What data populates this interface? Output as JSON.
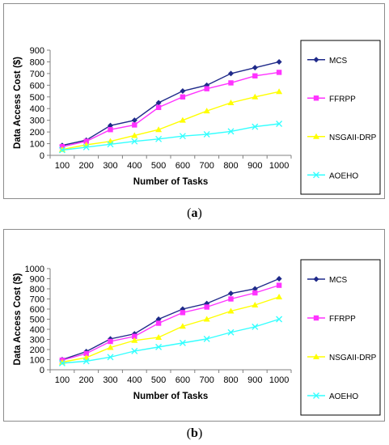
{
  "chart_data": [
    {
      "type": "line",
      "caption_label": "a",
      "xlabel": "Number of Tasks",
      "ylabel": "Data Access Cost ($)",
      "categories": [
        "100",
        "200",
        "300",
        "400",
        "500",
        "600",
        "700",
        "800",
        "900",
        "1000"
      ],
      "ylim": [
        0,
        900
      ],
      "yticks": [
        "0",
        "100",
        "200",
        "300",
        "400",
        "500",
        "600",
        "700",
        "800",
        "900"
      ],
      "grid": false,
      "legend_position": "right",
      "series": [
        {
          "name": "MCS",
          "color": "#1f2a8a",
          "marker": "diamond",
          "values": [
            85,
            130,
            255,
            300,
            450,
            550,
            600,
            700,
            750,
            800
          ]
        },
        {
          "name": "FFRPP",
          "color": "#ff33ff",
          "marker": "square",
          "values": [
            75,
            120,
            220,
            260,
            410,
            500,
            570,
            620,
            680,
            710
          ]
        },
        {
          "name": "NSGAII-DRP",
          "color": "#ffff00",
          "marker": "triangle",
          "values": [
            50,
            90,
            120,
            170,
            220,
            300,
            380,
            450,
            500,
            545
          ]
        },
        {
          "name": "AOEHO",
          "color": "#33ffff",
          "marker": "x",
          "values": [
            45,
            70,
            95,
            120,
            140,
            165,
            180,
            205,
            245,
            270
          ]
        }
      ]
    },
    {
      "type": "line",
      "caption_label": "b",
      "xlabel": "Number of Tasks",
      "ylabel": "Data Access Cost ($)",
      "categories": [
        "100",
        "200",
        "300",
        "400",
        "500",
        "600",
        "700",
        "800",
        "900",
        "1000"
      ],
      "ylim": [
        0,
        1000
      ],
      "yticks": [
        "0",
        "100",
        "200",
        "300",
        "400",
        "500",
        "600",
        "700",
        "800",
        "900",
        "1000"
      ],
      "grid": false,
      "legend_position": "right",
      "series": [
        {
          "name": "MCS",
          "color": "#1f2a8a",
          "marker": "diamond",
          "values": [
            100,
            180,
            305,
            355,
            500,
            600,
            655,
            755,
            800,
            900
          ]
        },
        {
          "name": "FFRPP",
          "color": "#ff33ff",
          "marker": "square",
          "values": [
            95,
            160,
            280,
            330,
            460,
            565,
            620,
            700,
            760,
            835
          ]
        },
        {
          "name": "NSGAII-DRP",
          "color": "#ffff00",
          "marker": "triangle",
          "values": [
            75,
            120,
            220,
            290,
            320,
            430,
            500,
            580,
            640,
            720
          ]
        },
        {
          "name": "AOEHO",
          "color": "#33ffff",
          "marker": "x",
          "values": [
            65,
            85,
            125,
            185,
            225,
            265,
            305,
            370,
            425,
            500
          ]
        }
      ]
    }
  ]
}
